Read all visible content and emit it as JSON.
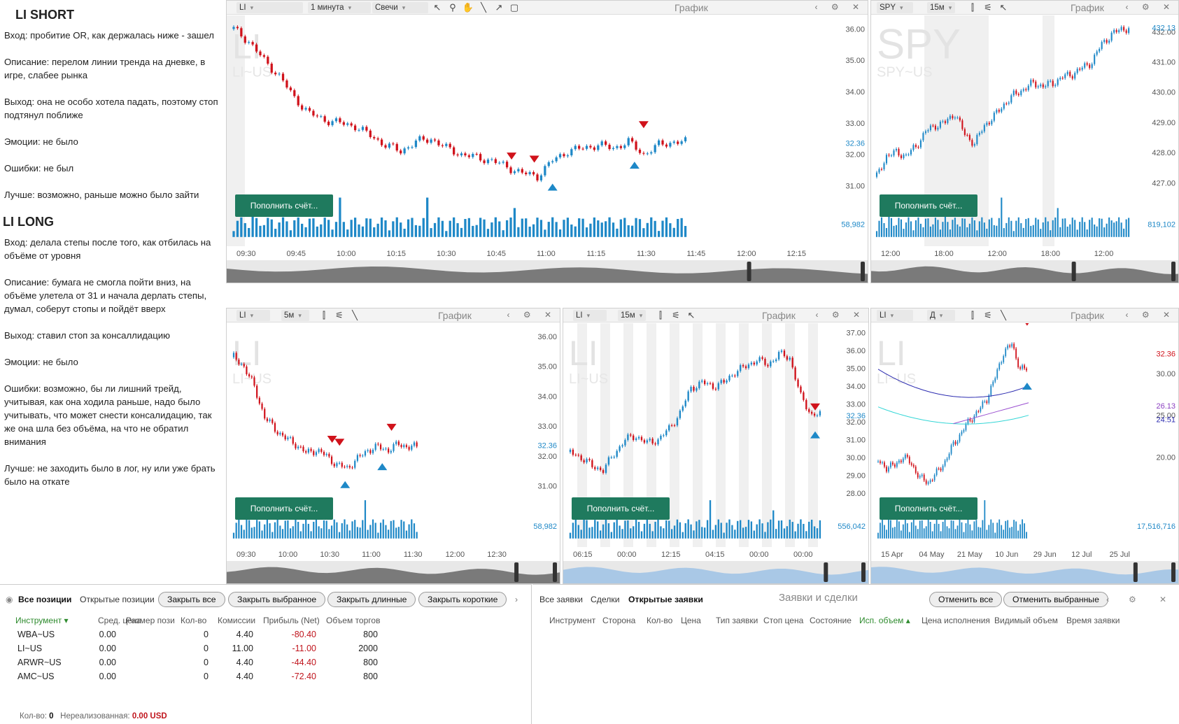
{
  "notes": {
    "short_title": "LI SHORT",
    "short": [
      "Вход: пробитие OR, как держалась ниже - зашел",
      "Описание: перелом линии тренда на дневке, в игре,  слабее рынка",
      "Выход: она не особо хотела падать, поэтому стоп подтянул поближе",
      "Эмоции: не было",
      "Ошибки: не был",
      "Лучше: возможно, раньше можно было зайти"
    ],
    "long_title": "LI LONG",
    "long": [
      "Вход: делала степы после того, как отбилась на объёме от уровня",
      "Описание: бумага не смогла пойти вниз, на объёме улетела от 31 и начала дерлать степы, думал, соберут стопы и пойдёт вверх",
      "Выход: ставил стоп за консаллидацию",
      "Эмоции: не было",
      "Ошибки: возможно, бы ли лишний трейд, учитывая, как она ходила раньше, надо было учитывать, что может снести консалидацию, так же она шла без объёма, на что не обратил внимания",
      "Лучше: не заходить было в лог, ну или уже брать было на откате"
    ]
  },
  "common": {
    "chart_title": "График",
    "fill_button": "Пополнить счёт...",
    "controls": "‹ ⚙ ✕"
  },
  "charts": [
    {
      "symbol": "LI",
      "interval": "1 минута",
      "style": "Свечи",
      "watermark": "LI",
      "watermark_sub": "LI~US",
      "yticks": [
        "36.00",
        "35.00",
        "34.00",
        "33.00",
        "32.00",
        "31.00"
      ],
      "last_price": "32.36",
      "volume_label": "58,982",
      "xticks": [
        "09:30",
        "09:45",
        "10:00",
        "10:15",
        "10:30",
        "10:45",
        "11:00",
        "11:15",
        "11:30",
        "11:45",
        "12:00",
        "12:15"
      ],
      "trend": [
        36.0,
        35.6,
        35.0,
        34.5,
        33.8,
        33.3,
        33.1,
        33.0,
        32.9,
        32.6,
        32.3,
        32.1,
        32.4,
        32.5,
        32.2,
        32.0,
        31.9,
        31.8,
        31.6,
        31.4,
        31.3,
        31.8,
        32.1,
        32.2,
        32.3,
        32.2,
        32.4,
        32.0,
        32.3,
        32.4
      ],
      "ymin": 30.8,
      "ymax": 36.3
    },
    {
      "symbol": "SPY",
      "interval": "15м",
      "watermark": "SPY",
      "watermark_sub": "SPY~US",
      "yticks": [
        "432.00",
        "431.00",
        "430.00",
        "429.00",
        "428.00",
        "427.00"
      ],
      "last_price": "432.13",
      "volume_label": "819,102",
      "xticks": [
        "12:00",
        "18:00",
        "12:00",
        "18:00",
        "12:00"
      ],
      "trend": [
        427.2,
        427.9,
        428.0,
        427.9,
        428.2,
        428.7,
        428.9,
        429.0,
        429.3,
        428.6,
        428.3,
        428.9,
        429.2,
        429.6,
        429.9,
        430.1,
        430.3,
        430.2,
        430.3,
        430.5,
        430.6,
        430.8,
        431.0,
        431.6,
        431.9,
        432.1
      ],
      "ymin": 426.7,
      "ymax": 432.4
    },
    {
      "symbol": "LI",
      "interval": "5м",
      "watermark": "LI",
      "watermark_sub": "LI~US",
      "yticks": [
        "36.00",
        "35.00",
        "34.00",
        "33.00",
        "32.00",
        "31.00"
      ],
      "last_price": "32.36",
      "volume_label": "58,982",
      "xticks": [
        "09:30",
        "10:00",
        "10:30",
        "11:00",
        "11:30",
        "12:00",
        "12:30"
      ],
      "trend": [
        35.3,
        35.0,
        34.3,
        33.3,
        32.9,
        32.6,
        32.4,
        32.1,
        32.2,
        32.0,
        31.7,
        31.6,
        31.9,
        32.2,
        32.3,
        32.2,
        32.4,
        32.3
      ],
      "ymin": 30.7,
      "ymax": 36.3
    },
    {
      "symbol": "LI",
      "interval": "15м",
      "watermark": "LI",
      "watermark_sub": "LI~US",
      "yticks": [
        "37.00",
        "36.00",
        "35.00",
        "34.00",
        "33.00",
        "32.00",
        "31.00",
        "30.00",
        "29.00",
        "28.00"
      ],
      "last_price": "32.36",
      "volume_label": "556,042",
      "xticks": [
        "06:15",
        "00:00",
        "12:15",
        "04:15",
        "00:00",
        "00:00"
      ],
      "trend": [
        30.3,
        30.0,
        29.5,
        29.3,
        30.2,
        31.0,
        31.2,
        30.8,
        31.0,
        31.6,
        32.5,
        33.9,
        34.2,
        34.0,
        34.2,
        34.8,
        35.1,
        35.5,
        35.2,
        35.8,
        35.6,
        33.4,
        32.4
      ],
      "ymin": 27.9,
      "ymax": 37.3
    },
    {
      "symbol": "LI",
      "interval": "Д",
      "watermark": "LI",
      "watermark_sub": "LI~US",
      "yticks": [
        "30.00",
        "25.00",
        "20.00"
      ],
      "last_price": "32.36",
      "ma1": "26.13",
      "ma2": "24.51",
      "volume_label": "17,516,716",
      "xticks": [
        "15 Apr",
        "04 May",
        "21 May",
        "10 Jun",
        "29 Jun",
        "12 Jul",
        "25 Jul"
      ],
      "trend": [
        19.5,
        18.8,
        19.0,
        20.1,
        19.2,
        17.5,
        17.0,
        18.1,
        19.5,
        21.5,
        23.0,
        24.5,
        25.5,
        27.0,
        29.5,
        32.5,
        33.5,
        30.5
      ],
      "ymin": 15.5,
      "ymax": 35.5
    }
  ],
  "positions": {
    "tab_all": "Все позиции",
    "tab_open": "Открытые позиции",
    "btn_close_all": "Закрыть все",
    "btn_close_sel": "Закрыть выбранное",
    "btn_close_long": "Закрыть длинные",
    "btn_close_short": "Закрыть короткие",
    "headers": [
      "Инструмент ▾",
      "Сред. цена",
      "Размер пози",
      "Кол-во",
      "Комиссии",
      "Прибыль (Net)",
      "Объем торгов"
    ],
    "rows": [
      [
        "WBA~US",
        "0.00",
        "",
        "0",
        "4.40",
        "-80.40",
        "800"
      ],
      [
        "LI~US",
        "0.00",
        "",
        "0",
        "11.00",
        "-11.00",
        "2000"
      ],
      [
        "ARWR~US",
        "0.00",
        "",
        "0",
        "4.40",
        "-44.40",
        "800"
      ],
      [
        "AMC~US",
        "0.00",
        "",
        "0",
        "4.40",
        "-72.40",
        "800"
      ]
    ],
    "footer_qty_label": "Кол-во:",
    "footer_qty": "0",
    "footer_unreal_label": "Нереализованная:",
    "footer_unreal": "0.00 USD"
  },
  "orders": {
    "tab_all": "Все заявки",
    "tab_deals": "Сделки",
    "tab_open": "Открытые заявки",
    "title": "Заявки и сделки",
    "btn_cancel_all": "Отменить все",
    "btn_cancel_sel": "Отменить выбранные",
    "headers": [
      "Инструмент",
      "Сторона",
      "Кол-во",
      "Цена",
      "Тип заявки",
      "Стоп цена",
      "Состояние",
      "Исп. объем ▴",
      "Цена исполнения",
      "Видимый объем",
      "Время заявки"
    ]
  },
  "colors": {
    "up": "#1e88c7",
    "down": "#d0121b",
    "green_btn": "#1f7a5e"
  }
}
